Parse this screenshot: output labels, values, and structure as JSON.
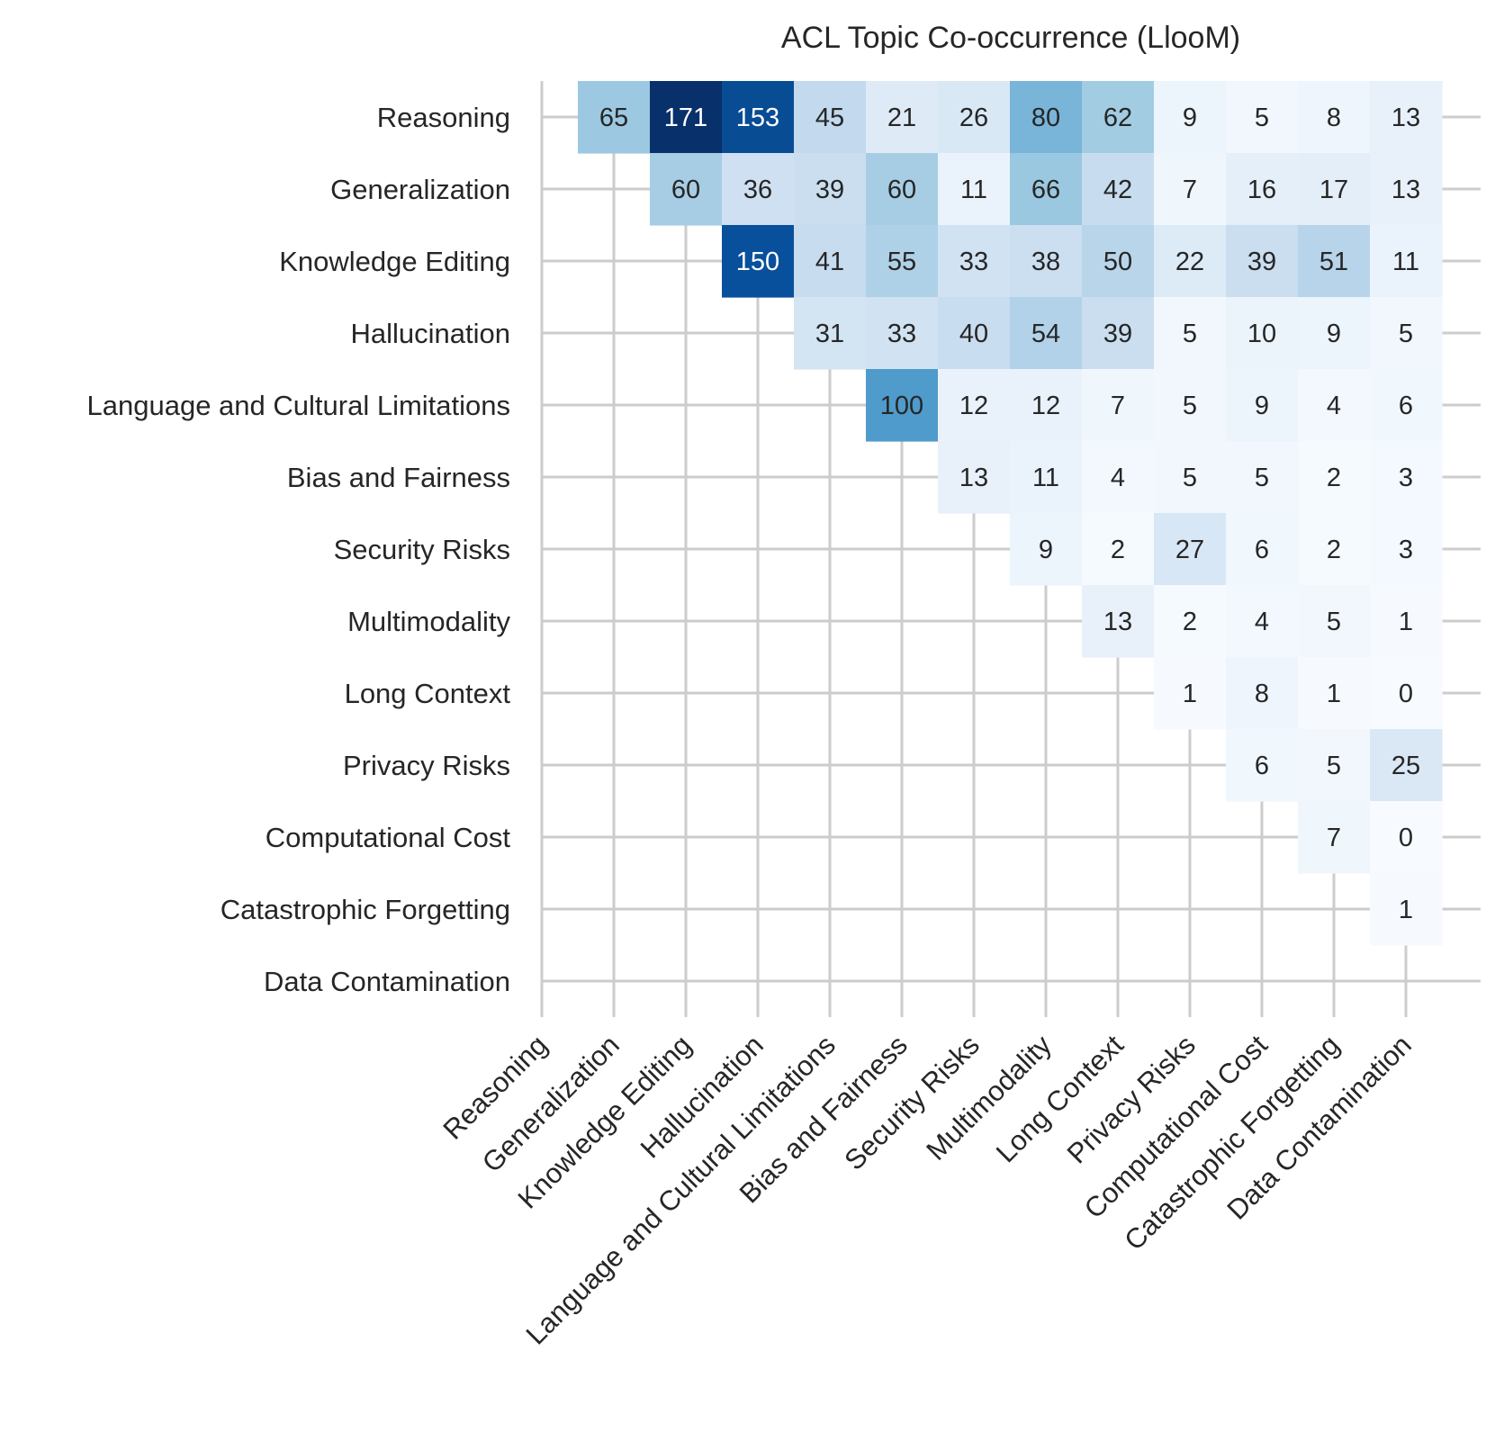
{
  "chart_data": {
    "type": "heatmap",
    "title": "ACL Topic Co-occurrence (LlooM)",
    "colormap": "Blues",
    "color_range": [
      0,
      171
    ],
    "mask": "lower-triangle-and-diagonal",
    "grid": true,
    "categories": [
      "Reasoning",
      "Generalization",
      "Knowledge Editing",
      "Hallucination",
      "Language and Cultural Limitations",
      "Bias and Fairness",
      "Security Risks",
      "Multimodality",
      "Long Context",
      "Privacy Risks",
      "Computational Cost",
      "Catastrophic Forgetting",
      "Data Contamination"
    ],
    "rows": [
      [
        65,
        171,
        153,
        45,
        21,
        26,
        80,
        62,
        9,
        5,
        8,
        13
      ],
      [
        60,
        36,
        39,
        60,
        11,
        66,
        42,
        7,
        16,
        17,
        13
      ],
      [
        150,
        41,
        55,
        33,
        38,
        50,
        22,
        39,
        51,
        11
      ],
      [
        31,
        33,
        40,
        54,
        39,
        5,
        10,
        9,
        5
      ],
      [
        100,
        12,
        12,
        7,
        5,
        9,
        4,
        6
      ],
      [
        13,
        11,
        4,
        5,
        5,
        2,
        3
      ],
      [
        9,
        2,
        27,
        6,
        2,
        3
      ],
      [
        13,
        2,
        4,
        5,
        1
      ],
      [
        1,
        8,
        1,
        0
      ],
      [
        6,
        5,
        25
      ],
      [
        7,
        0
      ],
      [
        1
      ],
      []
    ]
  }
}
